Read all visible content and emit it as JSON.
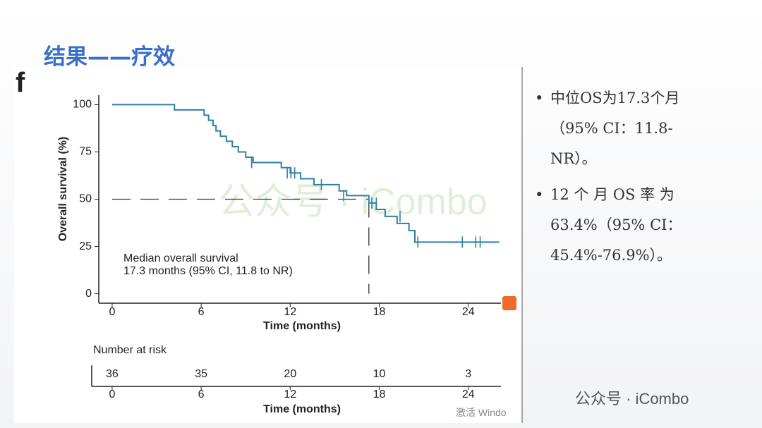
{
  "slide_title": "结果——疗效",
  "bullets": [
    "中位OS为17.3个月（95% CI：11.8-NR）。",
    "12 个 月 OS 率 为 63.4%（95% CI：45.4%-76.9%）。"
  ],
  "watermark": "公众号 · iCombo",
  "system_text": "激活 Windo",
  "chart_data": {
    "type": "line",
    "step": true,
    "panel_label": "f",
    "ylabel": "Overall survival (%)",
    "xlabel": "Time (months)",
    "xlim": [
      -0.9,
      26.2
    ],
    "ylim": [
      -5,
      105
    ],
    "xticks": [
      0,
      6,
      12,
      18,
      24
    ],
    "yticks": [
      0,
      25,
      50,
      75,
      100
    ],
    "color": "#2f7fa6",
    "x": [
      0,
      4.2,
      6.2,
      6.5,
      6.8,
      7.0,
      7.3,
      7.7,
      8.1,
      8.5,
      9.0,
      9.5,
      11.4,
      12.0,
      12.7,
      13.6,
      15.3,
      15.8,
      17.3,
      17.8,
      18.4,
      19.2,
      20.0,
      20.4,
      26.1
    ],
    "y": [
      100,
      97.2,
      94.4,
      91.7,
      88.9,
      86.1,
      83.3,
      80.6,
      77.8,
      75.0,
      72.2,
      69.4,
      66.7,
      63.9,
      60.8,
      57.7,
      54.4,
      51.9,
      48.0,
      44.6,
      40.9,
      37.2,
      33.4,
      27.3,
      27.3
    ],
    "censored": {
      "x": [
        9.4,
        11.8,
        12.05,
        12.3,
        14.1,
        15.6,
        17.5,
        17.8,
        19.4,
        20.6,
        23.6,
        24.5,
        24.8
      ],
      "y": [
        69.4,
        63.9,
        63.9,
        63.9,
        57.7,
        51.9,
        48.0,
        48.0,
        40.9,
        27.3,
        27.3,
        27.3,
        27.3
      ]
    },
    "median": {
      "x": 17.3,
      "y": 50
    },
    "annotation": [
      "Median overall survival",
      "17.3 months (95% CI, 11.8 to NR)"
    ],
    "risk_table": {
      "title": "Number at risk",
      "values": [
        36,
        35,
        20,
        10,
        3
      ]
    }
  }
}
